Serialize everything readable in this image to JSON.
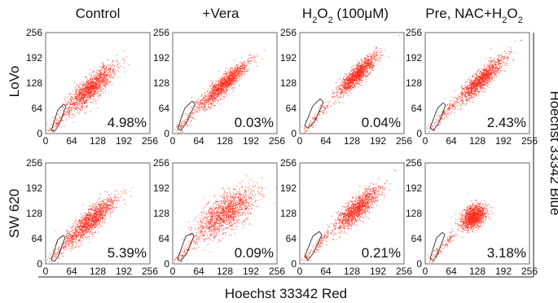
{
  "chart_data": {
    "type": "scatter",
    "xlabel": "Hoechst  33342 Red",
    "ylabel": "Hoechst 33342 Blue",
    "columns": [
      "Control",
      "+Vera",
      "H2O2 (100μM)",
      "Pre, NAC+H2O2"
    ],
    "rows": [
      "LoVo",
      "SW 620"
    ],
    "x_ticks": [
      "0",
      "64",
      "128",
      "192",
      "256"
    ],
    "y_ticks": [
      "0",
      "64",
      "128",
      "192",
      "256"
    ],
    "xlim": [
      0,
      256
    ],
    "ylim": [
      0,
      256
    ],
    "marker_color": "#ff2a1a",
    "gate_color": "#333333",
    "panels": [
      {
        "row": "LoVo",
        "column": "Control",
        "side_population_percent": "4.98%",
        "cluster_center": [
          110,
          115
        ],
        "cluster_axis_lengths": [
          95,
          28
        ],
        "main_cloud_angle_deg": 45,
        "gate_polygon": [
          [
            14,
            8
          ],
          [
            30,
            60
          ],
          [
            44,
            75
          ],
          [
            50,
            70
          ],
          [
            34,
            25
          ],
          [
            22,
            6
          ]
        ]
      },
      {
        "row": "LoVo",
        "column": "+Vera",
        "side_population_percent": "0.03%",
        "cluster_center": [
          125,
          125
        ],
        "cluster_axis_lengths": [
          95,
          22
        ],
        "main_cloud_angle_deg": 45,
        "gate_polygon": [
          [
            12,
            12
          ],
          [
            30,
            65
          ],
          [
            48,
            82
          ],
          [
            55,
            75
          ],
          [
            34,
            28
          ],
          [
            20,
            8
          ]
        ]
      },
      {
        "row": "LoVo",
        "column": "H2O2 (100μM)",
        "side_population_percent": "0.04%",
        "cluster_center": [
          140,
          150
        ],
        "cluster_axis_lengths": [
          80,
          20
        ],
        "main_cloud_angle_deg": 47,
        "gate_polygon": [
          [
            12,
            20
          ],
          [
            32,
            70
          ],
          [
            50,
            88
          ],
          [
            58,
            80
          ],
          [
            36,
            30
          ],
          [
            20,
            14
          ]
        ]
      },
      {
        "row": "LoVo",
        "column": "Pre, NAC+H2O2",
        "side_population_percent": "2.43%",
        "cluster_center": [
          135,
          135
        ],
        "cluster_axis_lengths": [
          95,
          22
        ],
        "main_cloud_angle_deg": 45,
        "gate_polygon": [
          [
            12,
            14
          ],
          [
            30,
            64
          ],
          [
            44,
            78
          ],
          [
            50,
            72
          ],
          [
            32,
            24
          ],
          [
            20,
            8
          ]
        ]
      },
      {
        "row": "SW 620",
        "column": "Control",
        "side_population_percent": "5.39%",
        "cluster_center": [
          110,
          110
        ],
        "cluster_axis_lengths": [
          95,
          28
        ],
        "main_cloud_angle_deg": 45,
        "gate_polygon": [
          [
            14,
            10
          ],
          [
            30,
            62
          ],
          [
            44,
            72
          ],
          [
            48,
            68
          ],
          [
            32,
            22
          ],
          [
            22,
            6
          ]
        ]
      },
      {
        "row": "SW 620",
        "column": "+Vera",
        "side_population_percent": "0.09%",
        "cluster_center": [
          130,
          130
        ],
        "cluster_axis_lengths": [
          100,
          45
        ],
        "main_cloud_angle_deg": 40,
        "gate_polygon": [
          [
            12,
            12
          ],
          [
            32,
            70
          ],
          [
            48,
            78
          ],
          [
            52,
            70
          ],
          [
            34,
            26
          ],
          [
            20,
            8
          ]
        ]
      },
      {
        "row": "SW 620",
        "column": "H2O2 (100μM)",
        "side_population_percent": "0.21%",
        "cluster_center": [
          140,
          140
        ],
        "cluster_axis_lengths": [
          90,
          26
        ],
        "main_cloud_angle_deg": 45,
        "gate_polygon": [
          [
            12,
            18
          ],
          [
            32,
            70
          ],
          [
            48,
            82
          ],
          [
            54,
            74
          ],
          [
            34,
            28
          ],
          [
            20,
            10
          ]
        ]
      },
      {
        "row": "SW 620",
        "column": "Pre, NAC+H2O2",
        "side_population_percent": "3.18%",
        "cluster_center": [
          118,
          120
        ],
        "cluster_axis_lengths": [
          40,
          28
        ],
        "main_cloud_angle_deg": 45,
        "gate_polygon": [
          [
            12,
            14
          ],
          [
            28,
            66
          ],
          [
            42,
            80
          ],
          [
            48,
            74
          ],
          [
            30,
            24
          ],
          [
            20,
            8
          ]
        ]
      }
    ]
  }
}
